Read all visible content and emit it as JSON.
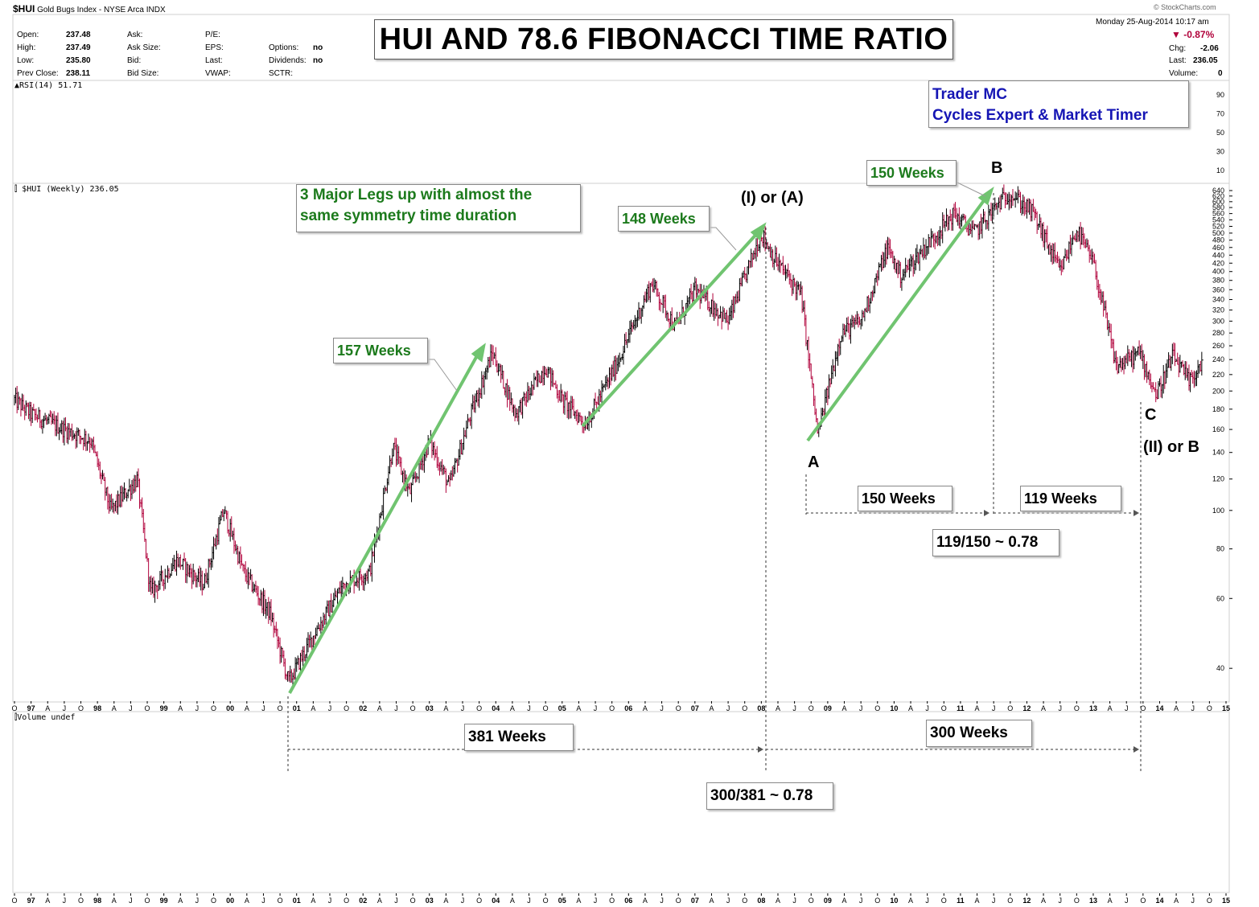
{
  "header": {
    "symbol": "$HUI",
    "name": "Gold Bugs Index - NYSE Arca INDX",
    "date": "Monday  25-Aug-2014  10:17 am",
    "change_pct": "-0.87%",
    "chg_label": "Chg:",
    "chg_value": "-2.06",
    "last_label": "Last:",
    "last_value": "236.05",
    "volume_label": "Volume:",
    "volume_value": "0",
    "watermark": "© StockCharts.com",
    "quote": [
      {
        "label": "Open:",
        "value": "237.48"
      },
      {
        "label": "High:",
        "value": "237.49"
      },
      {
        "label": "Low:",
        "value": "235.80"
      },
      {
        "label": "Prev Close:",
        "value": "238.11"
      }
    ],
    "quote2": [
      "Ask:",
      "Ask Size:",
      "Bid:",
      "Bid Size:"
    ],
    "quote3": [
      "P/E:",
      "EPS:",
      "Last:",
      "VWAP:"
    ],
    "quote4": [
      {
        "label": "",
        "value": ""
      },
      {
        "label": "Options:",
        "value": "no"
      },
      {
        "label": "Dividends:",
        "value": "no"
      },
      {
        "label": "SCTR:",
        "value": ""
      }
    ]
  },
  "title": "HUI AND 78.6 FIBONACCI TIME RATIO",
  "author": {
    "line1": "Trader MC",
    "line2": "Cycles Expert & Market Timer"
  },
  "panels": {
    "rsi_label": "RSI(14) 51.71",
    "price_label": "$HUI (Weekly) 236.05",
    "volume_label": "Volume undef"
  },
  "annotations": {
    "legs_note_line1": "3 Major Legs up with almost the",
    "legs_note_line2": "same symmetry time duration",
    "leg1": "157 Weeks",
    "leg2": "148 Weeks",
    "leg3": "150 Weeks",
    "wave_I_A": "(I) or (A)",
    "wave_A": "A",
    "wave_B": "B",
    "wave_C": "C",
    "wave_II_B": "(II) or B",
    "span_150": "150 Weeks",
    "span_119": "119 Weeks",
    "ratio_small": "119/150 ~ 0.78",
    "span_381": "381 Weeks",
    "span_300": "300 Weeks",
    "ratio_big": "300/381 ~ 0.78"
  },
  "colors": {
    "up_bar": "#000000",
    "down_bar": "#b0003a",
    "trend_line": "#70c470",
    "title_text": "#000000",
    "author_text": "#1515b4",
    "annotation_green": "#1c7a1c",
    "change_down": "#b0003a"
  },
  "chart_data": {
    "type": "line",
    "title": "HUI AND 78.6 FIBONACCI TIME RATIO",
    "series_name": "$HUI (Weekly)",
    "y_scale": "log",
    "ylim": [
      34,
      640
    ],
    "y_ticks": [
      640,
      620,
      600,
      580,
      560,
      540,
      520,
      500,
      480,
      460,
      440,
      420,
      400,
      380,
      360,
      340,
      320,
      300,
      280,
      260,
      240,
      220,
      200,
      180,
      160,
      140,
      120,
      100,
      80,
      60,
      40
    ],
    "rsi_ticks": [
      90,
      70,
      50,
      30,
      10
    ],
    "x_tick_labels": [
      "O",
      "97",
      "A",
      "J",
      "O",
      "98",
      "A",
      "J",
      "O",
      "99",
      "A",
      "J",
      "O",
      "00",
      "A",
      "J",
      "O",
      "01",
      "A",
      "J",
      "O",
      "02",
      "A",
      "J",
      "O",
      "03",
      "A",
      "J",
      "O",
      "04",
      "A",
      "J",
      "O",
      "05",
      "A",
      "J",
      "O",
      "06",
      "A",
      "J",
      "O",
      "07",
      "A",
      "J",
      "O",
      "08",
      "A",
      "J",
      "O",
      "09",
      "A",
      "J",
      "O",
      "10",
      "A",
      "J",
      "O",
      "11",
      "A",
      "J",
      "O",
      "12",
      "A",
      "J",
      "O",
      "13",
      "A",
      "J",
      "O",
      "14",
      "A",
      "J",
      "O",
      "15"
    ],
    "x_start_year": 1996.75,
    "x_end_year": 2015.0,
    "approx_path": [
      {
        "t": 1996.75,
        "v": 190
      },
      {
        "t": 1997.0,
        "v": 175
      },
      {
        "t": 1997.5,
        "v": 160
      },
      {
        "t": 1997.9,
        "v": 150
      },
      {
        "t": 1998.2,
        "v": 100
      },
      {
        "t": 1998.6,
        "v": 120
      },
      {
        "t": 1998.8,
        "v": 62
      },
      {
        "t": 1999.2,
        "v": 75
      },
      {
        "t": 1999.6,
        "v": 65
      },
      {
        "t": 1999.9,
        "v": 100
      },
      {
        "t": 2000.2,
        "v": 70
      },
      {
        "t": 2000.6,
        "v": 55
      },
      {
        "t": 2000.88,
        "v": 37
      },
      {
        "t": 2001.3,
        "v": 50
      },
      {
        "t": 2001.7,
        "v": 65
      },
      {
        "t": 2002.1,
        "v": 70
      },
      {
        "t": 2002.45,
        "v": 145
      },
      {
        "t": 2002.7,
        "v": 110
      },
      {
        "t": 2003.0,
        "v": 150
      },
      {
        "t": 2003.3,
        "v": 115
      },
      {
        "t": 2003.6,
        "v": 170
      },
      {
        "t": 2003.95,
        "v": 250
      },
      {
        "t": 2004.3,
        "v": 175
      },
      {
        "t": 2004.75,
        "v": 230
      },
      {
        "t": 2005.0,
        "v": 190
      },
      {
        "t": 2005.35,
        "v": 165
      },
      {
        "t": 2005.8,
        "v": 230
      },
      {
        "t": 2006.35,
        "v": 375
      },
      {
        "t": 2006.7,
        "v": 290
      },
      {
        "t": 2007.0,
        "v": 360
      },
      {
        "t": 2007.5,
        "v": 300
      },
      {
        "t": 2008.0,
        "v": 500
      },
      {
        "t": 2008.2,
        "v": 430
      },
      {
        "t": 2008.6,
        "v": 350
      },
      {
        "t": 2008.85,
        "v": 155
      },
      {
        "t": 2009.2,
        "v": 280
      },
      {
        "t": 2009.5,
        "v": 300
      },
      {
        "t": 2009.9,
        "v": 460
      },
      {
        "t": 2010.1,
        "v": 390
      },
      {
        "t": 2010.9,
        "v": 560
      },
      {
        "t": 2011.2,
        "v": 500
      },
      {
        "t": 2011.6,
        "v": 600
      },
      {
        "t": 2011.75,
        "v": 630
      },
      {
        "t": 2012.1,
        "v": 560
      },
      {
        "t": 2012.5,
        "v": 400
      },
      {
        "t": 2012.75,
        "v": 510
      },
      {
        "t": 2013.0,
        "v": 420
      },
      {
        "t": 2013.35,
        "v": 230
      },
      {
        "t": 2013.7,
        "v": 250
      },
      {
        "t": 2013.95,
        "v": 195
      },
      {
        "t": 2014.2,
        "v": 245
      },
      {
        "t": 2014.45,
        "v": 210
      },
      {
        "t": 2014.65,
        "v": 238
      }
    ]
  }
}
